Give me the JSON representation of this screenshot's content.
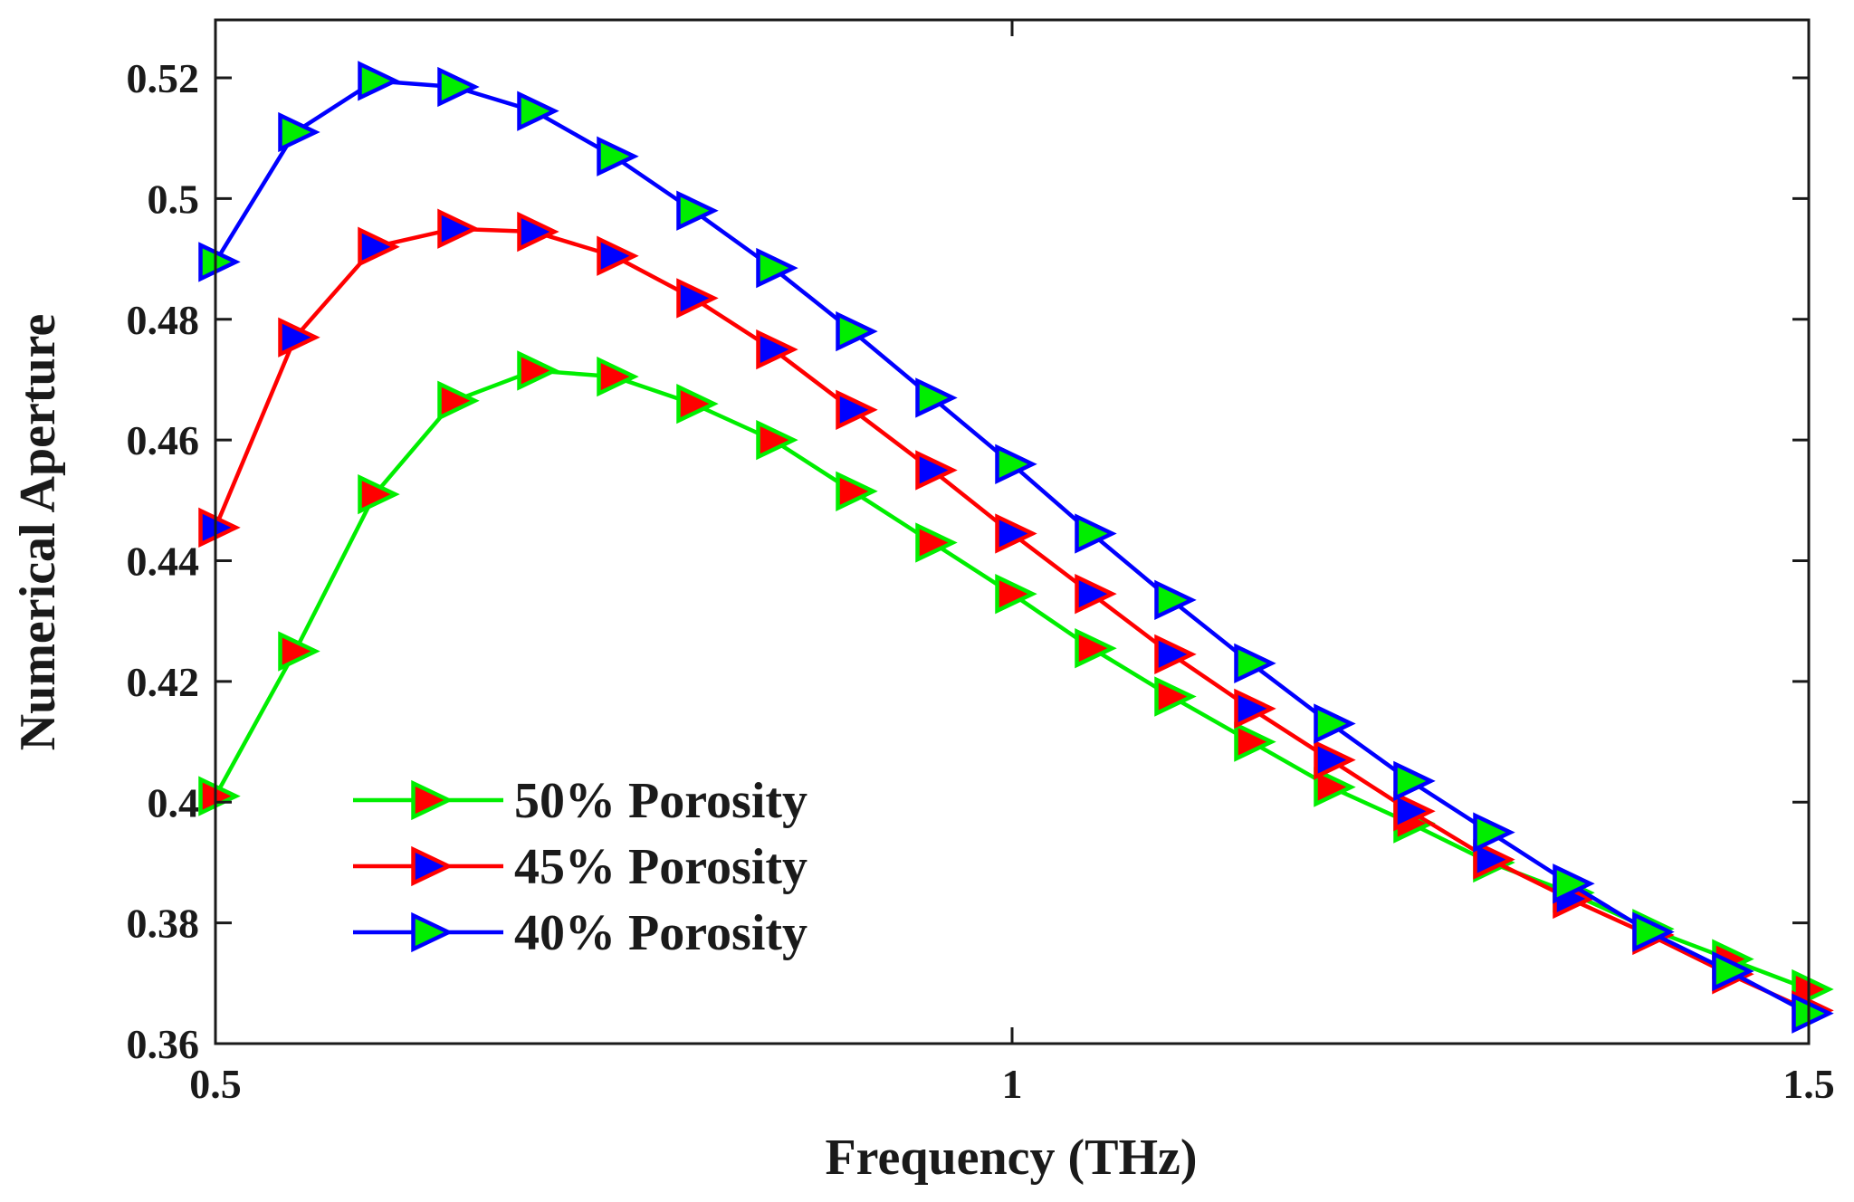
{
  "chart_data": {
    "type": "line",
    "title": "",
    "xlabel": "Frequency (THz)",
    "ylabel": "Numerical Aperture",
    "xlim": [
      0.5,
      1.5
    ],
    "ylim": [
      0.36,
      0.53
    ],
    "xticks": [
      0.5,
      1,
      1.5
    ],
    "xtick_labels": [
      "0.5",
      "1",
      "1.5"
    ],
    "yticks": [
      0.36,
      0.38,
      0.4,
      0.42,
      0.44,
      0.46,
      0.48,
      0.5,
      0.52
    ],
    "ytick_labels": [
      "0.36",
      "0.38",
      "0.4",
      "0.42",
      "0.44",
      "0.46",
      "0.48",
      "0.5",
      "0.52"
    ],
    "grid": false,
    "legend_position": "bottom-left",
    "x": [
      0.5,
      0.55,
      0.6,
      0.65,
      0.7,
      0.75,
      0.8,
      0.85,
      0.9,
      0.95,
      1.0,
      1.05,
      1.1,
      1.15,
      1.2,
      1.25,
      1.3,
      1.35,
      1.4,
      1.45,
      1.5
    ],
    "series": [
      {
        "name": "50% Porosity",
        "line_color": "#00ee00",
        "marker_face": "#ff0000",
        "marker_edge": "#00ee00",
        "marker": "triangle-right",
        "values": [
          0.401,
          0.425,
          0.451,
          0.4665,
          0.4715,
          0.4705,
          0.466,
          0.46,
          0.4515,
          0.443,
          0.4345,
          0.4255,
          0.4175,
          0.41,
          0.4025,
          0.3965,
          0.39,
          0.385,
          0.379,
          0.374,
          0.369
        ]
      },
      {
        "name": "45% Porosity",
        "line_color": "#ff0000",
        "marker_face": "#0000ff",
        "marker_edge": "#ff0000",
        "marker": "triangle-right",
        "values": [
          0.4455,
          0.477,
          0.492,
          0.495,
          0.4945,
          0.4905,
          0.4835,
          0.475,
          0.465,
          0.455,
          0.4445,
          0.4345,
          0.4245,
          0.4155,
          0.407,
          0.3985,
          0.3905,
          0.384,
          0.378,
          0.3715,
          0.3655
        ]
      },
      {
        "name": "40% Porosity",
        "line_color": "#0000ff",
        "marker_face": "#00ee00",
        "marker_edge": "#0000ff",
        "marker": "triangle-right",
        "values": [
          0.4895,
          0.511,
          0.5195,
          0.5185,
          0.5145,
          0.507,
          0.498,
          0.4885,
          0.478,
          0.467,
          0.456,
          0.4445,
          0.4335,
          0.423,
          0.413,
          0.4035,
          0.395,
          0.3865,
          0.3785,
          0.372,
          0.365
        ]
      }
    ]
  }
}
